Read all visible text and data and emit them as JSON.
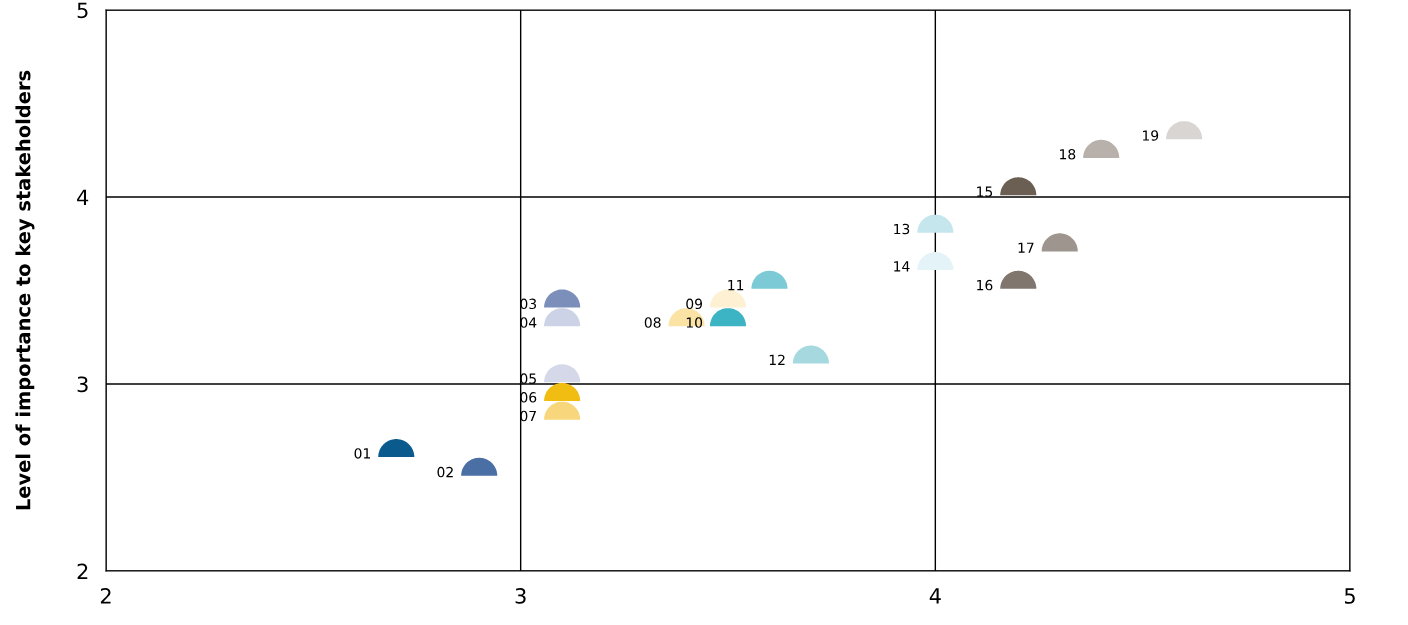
{
  "chart_data": {
    "type": "scatter",
    "ylabel": "Level of importance to key stakeholders",
    "xlim": [
      2,
      5
    ],
    "ylim": [
      2,
      5
    ],
    "xticks": [
      2,
      3,
      4,
      5
    ],
    "yticks": [
      2,
      3,
      4,
      5
    ],
    "grid": true,
    "x": [
      2.7,
      2.9,
      3.1,
      3.1,
      3.1,
      3.1,
      3.1,
      3.4,
      3.5,
      3.5,
      3.6,
      3.7,
      4.0,
      4.0,
      4.2,
      4.2,
      4.3,
      4.4,
      4.6
    ],
    "values": [
      2.65,
      2.55,
      3.45,
      3.35,
      3.05,
      2.95,
      2.85,
      3.35,
      3.45,
      3.35,
      3.55,
      3.15,
      3.85,
      3.65,
      4.05,
      3.55,
      3.75,
      4.25,
      4.35
    ],
    "colors": [
      "#0b5a8e",
      "#4a6fa5",
      "#7b8fba",
      "#cdd3e6",
      "#d5d8e8",
      "#f1bd13",
      "#f8d77c",
      "#fbe3a6",
      "#fdf0d3",
      "#3cb4c4",
      "#7bcad5",
      "#a6d8e0",
      "#c6e6ed",
      "#e3f3f7",
      "#6b5e53",
      "#80766e",
      "#9e958e",
      "#b7b0ab",
      "#d9d5d3"
    ],
    "annotations": [
      {
        "text": "01",
        "x": 2.7,
        "y": 2.6
      },
      {
        "text": "02",
        "x": 2.9,
        "y": 2.5
      },
      {
        "text": "03",
        "x": 3.1,
        "y": 3.4
      },
      {
        "text": "04",
        "x": 3.1,
        "y": 3.3
      },
      {
        "text": "05",
        "x": 3.1,
        "y": 3.0
      },
      {
        "text": "06",
        "x": 3.1,
        "y": 2.9
      },
      {
        "text": "07",
        "x": 3.1,
        "y": 2.8
      },
      {
        "text": "08",
        "x": 3.4,
        "y": 3.3
      },
      {
        "text": "09",
        "x": 3.5,
        "y": 3.4
      },
      {
        "text": "10",
        "x": 3.5,
        "y": 3.3
      },
      {
        "text": "11",
        "x": 3.6,
        "y": 3.5
      },
      {
        "text": "12",
        "x": 3.7,
        "y": 3.1
      },
      {
        "text": "13",
        "x": 4.0,
        "y": 3.8
      },
      {
        "text": "14",
        "x": 4.0,
        "y": 3.6
      },
      {
        "text": "15",
        "x": 4.2,
        "y": 4.0
      },
      {
        "text": "16",
        "x": 4.2,
        "y": 3.5
      },
      {
        "text": "17",
        "x": 4.3,
        "y": 3.7
      },
      {
        "text": "18",
        "x": 4.4,
        "y": 4.2
      },
      {
        "text": "19",
        "x": 4.6,
        "y": 4.3
      }
    ]
  }
}
